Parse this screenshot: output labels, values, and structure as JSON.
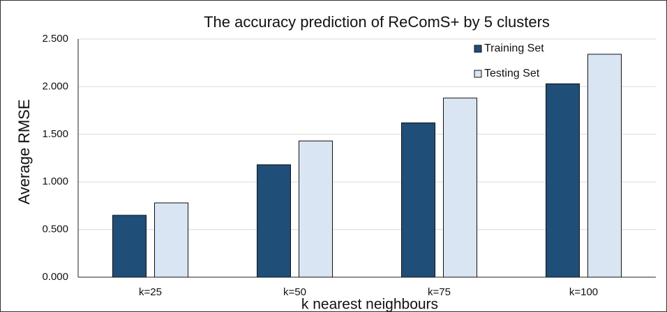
{
  "chart_data": {
    "type": "bar",
    "title": "The accuracy prediction of ReComS+ by 5 clusters",
    "x_label": "k nearest neighbours",
    "y_label": "Average RMSE",
    "categories": [
      "k=25",
      "k=50",
      "k=75",
      "k=100"
    ],
    "series": [
      {
        "name": "Training Set",
        "color": "#1f4e79",
        "values": [
          0.65,
          1.18,
          1.62,
          2.03
        ]
      },
      {
        "name": "Testing Set",
        "color": "#dae5f3",
        "values": [
          0.78,
          1.43,
          1.88,
          2.34
        ]
      }
    ],
    "ylim": [
      0,
      2.5
    ],
    "yticks": [
      {
        "value": 0,
        "label": "0.000"
      },
      {
        "value": 0.5,
        "label": "0.500"
      },
      {
        "value": 1,
        "label": "1.000"
      },
      {
        "value": 1.5,
        "label": "1.500"
      },
      {
        "value": 2,
        "label": "2.000"
      },
      {
        "value": 2.5,
        "label": "2.500"
      }
    ],
    "grid": true,
    "legend": "top-right"
  }
}
